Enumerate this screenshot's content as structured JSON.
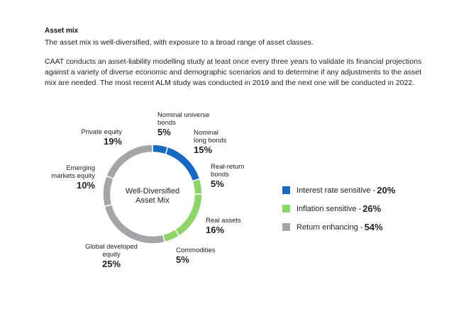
{
  "heading": "Asset mix",
  "intro": "The asset mix is well-diversified, with exposure to a broad range of asset classes.",
  "paragraph": "CAAT conducts an asset-liability modelling study at least once every three years to validate its financial projections against a variety of diverse economic and demographic scenarios and to determine if any adjustments to the asset mix are needed. The most recent ALM study was conducted in 2019 and the next one will be conducted in 2022.",
  "chart_data": {
    "type": "pie",
    "title": "Well-Diversified Asset Mix",
    "center_line1": "Well-Diversified",
    "center_line2": "Asset Mix",
    "slices": [
      {
        "label": "Nominal universe bonds",
        "line1": "Nominal universe",
        "line2": "bonds",
        "pct_text": "5%",
        "value": 5,
        "group": "Interest rate sensitive"
      },
      {
        "label": "Nominal long bonds",
        "line1": "Nominal",
        "line2": "long bonds",
        "pct_text": "15%",
        "value": 15,
        "group": "Interest rate sensitive"
      },
      {
        "label": "Real-return bonds",
        "line1": "Real-return",
        "line2": "bonds",
        "pct_text": "5%",
        "value": 5,
        "group": "Inflation sensitive"
      },
      {
        "label": "Real assets",
        "line1": "Real assets",
        "line2": "",
        "pct_text": "16%",
        "value": 16,
        "group": "Inflation sensitive"
      },
      {
        "label": "Commodities",
        "line1": "Commodities",
        "line2": "",
        "pct_text": "5%",
        "value": 5,
        "group": "Inflation sensitive"
      },
      {
        "label": "Global developed equity",
        "line1": "Global developed",
        "line2": "equity",
        "pct_text": "25%",
        "value": 25,
        "group": "Return enhancing"
      },
      {
        "label": "Emerging markets equity",
        "line1": "Emerging",
        "line2": "markets equity",
        "pct_text": "10%",
        "value": 10,
        "group": "Return enhancing"
      },
      {
        "label": "Private equity",
        "line1": "Private equity",
        "line2": "",
        "pct_text": "19%",
        "value": 19,
        "group": "Return enhancing"
      }
    ],
    "legend": [
      {
        "label": "Interest rate sensitive - ",
        "pct_text": "20%",
        "value": 20,
        "color": "#1769c2"
      },
      {
        "label": "Inflation sensitive - ",
        "pct_text": "26%",
        "value": 26,
        "color": "#8ed46a"
      },
      {
        "label": "Return enhancing - ",
        "pct_text": "54%",
        "value": 54,
        "color": "#a3a5a8"
      }
    ]
  }
}
